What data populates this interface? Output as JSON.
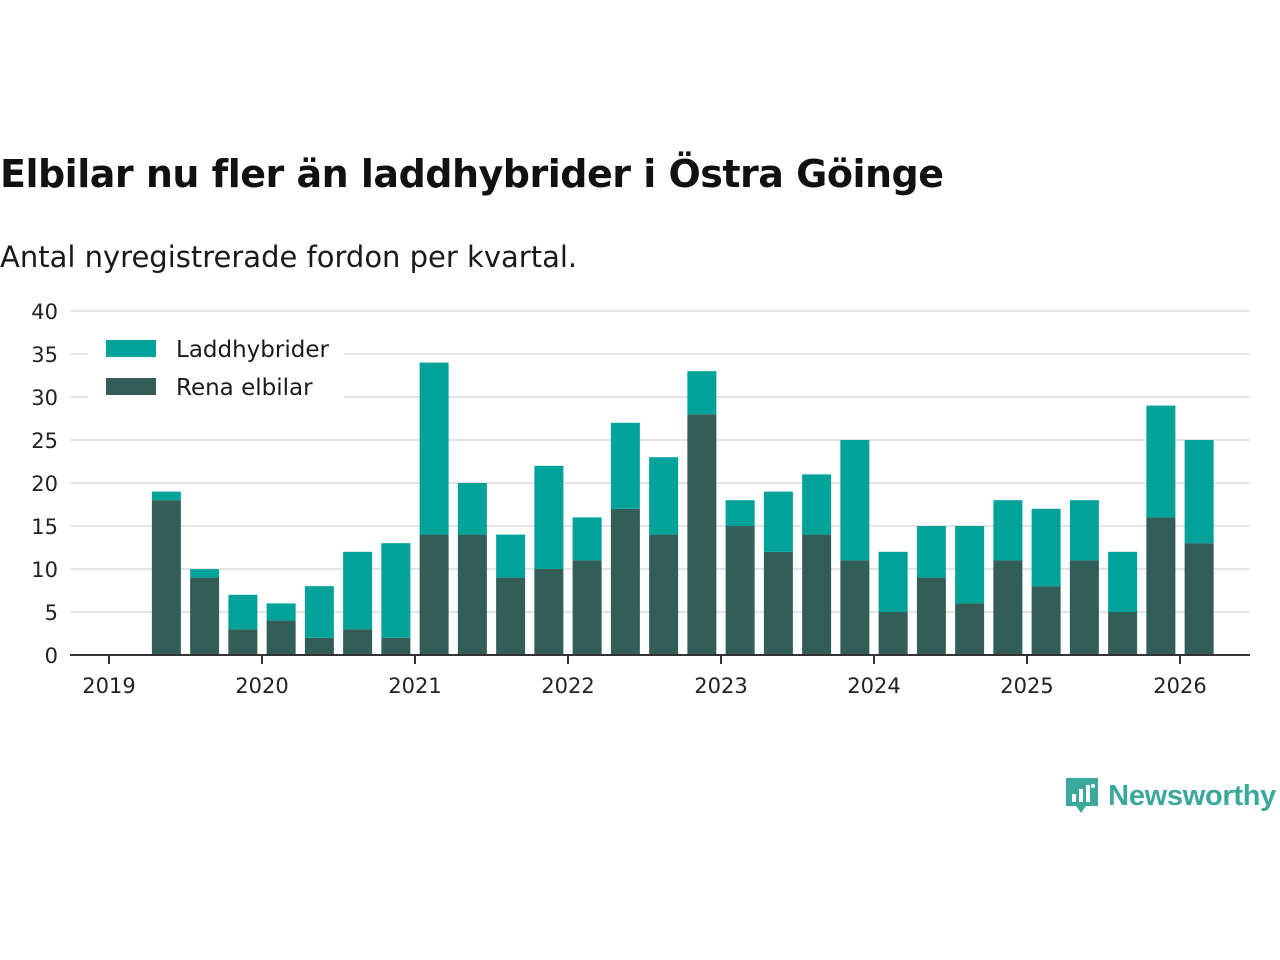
{
  "header": {
    "title": "Elbilar nu fler än laddhybrider i Östra Göinge",
    "subtitle": "Antal nyregistrerade fordon per kvartal."
  },
  "chart_data": {
    "type": "bar",
    "stacked": true,
    "title": "Elbilar nu fler än laddhybrider i Östra Göinge",
    "subtitle": "Antal nyregistrerade fordon per kvartal.",
    "xlabel": "",
    "ylabel": "",
    "ylim": [
      0,
      40
    ],
    "yticks": [
      0,
      5,
      10,
      15,
      20,
      25,
      30,
      35,
      40
    ],
    "xticks": [
      "2019",
      "2020",
      "2021",
      "2022",
      "2023",
      "2024",
      "2025",
      "2026"
    ],
    "categories": [
      "2019 Q2",
      "2019 Q3",
      "2019 Q4",
      "2020 Q1",
      "2020 Q2",
      "2020 Q3",
      "2020 Q4",
      "2021 Q1",
      "2021 Q2",
      "2021 Q3",
      "2021 Q4",
      "2022 Q1",
      "2022 Q2",
      "2022 Q3",
      "2022 Q4",
      "2023 Q1",
      "2023 Q2",
      "2023 Q3",
      "2023 Q4",
      "2024 Q1",
      "2024 Q2",
      "2024 Q3",
      "2024 Q4",
      "2025 Q1",
      "2025 Q2",
      "2025 Q3",
      "2025 Q4",
      "2026 Q1"
    ],
    "series": [
      {
        "name": "Rena elbilar",
        "color": "#335e57",
        "values": [
          18,
          9,
          3,
          4,
          2,
          3,
          2,
          14,
          14,
          9,
          10,
          11,
          17,
          14,
          28,
          15,
          12,
          14,
          11,
          5,
          9,
          6,
          11,
          8,
          11,
          5,
          16,
          13
        ]
      },
      {
        "name": "Laddhybrider",
        "color": "#00a29a",
        "values": [
          1,
          1,
          4,
          2,
          6,
          9,
          11,
          20,
          6,
          5,
          12,
          5,
          10,
          9,
          5,
          3,
          7,
          7,
          14,
          7,
          6,
          9,
          7,
          9,
          7,
          7,
          13,
          12
        ]
      }
    ],
    "legend": [
      "Laddhybrider",
      "Rena elbilar"
    ],
    "legend_position": "top-left",
    "grid": true
  },
  "brand": {
    "name": "Newsworthy",
    "icon": "newsworthy-logo-icon"
  }
}
